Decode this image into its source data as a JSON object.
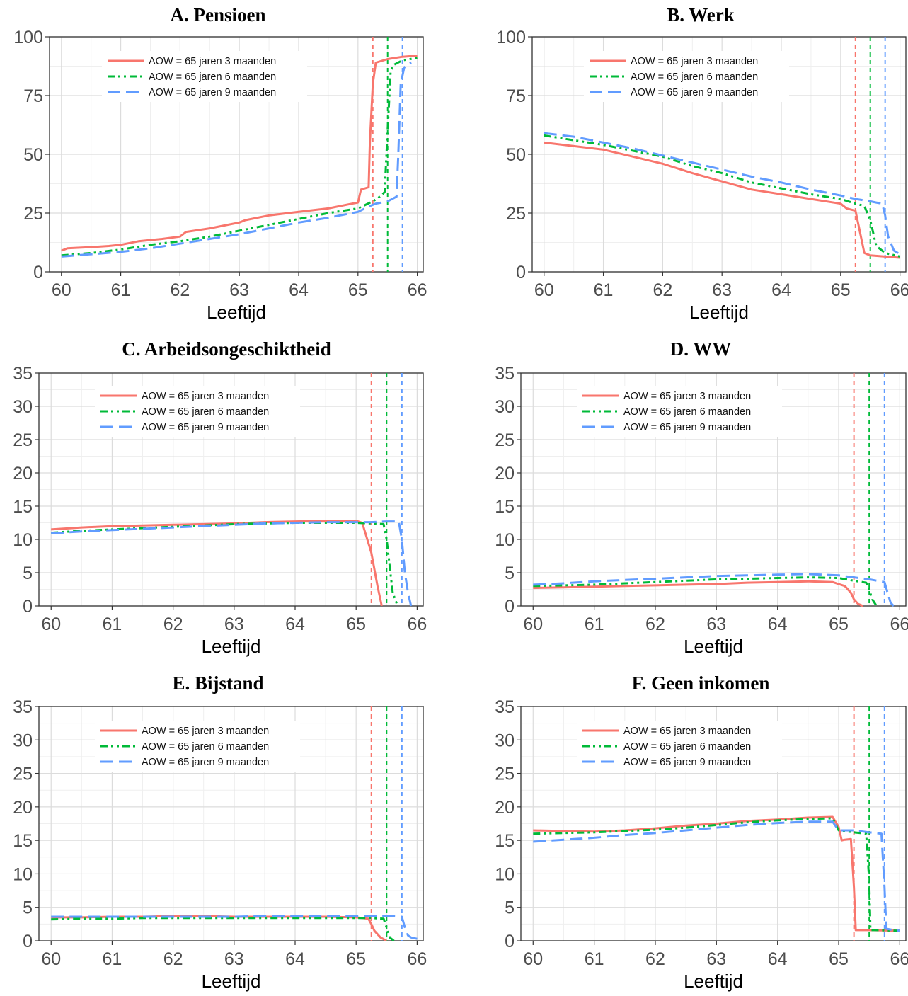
{
  "legend_labels": [
    "AOW = 65 jaren 3 maanden",
    "AOW = 65 jaren 6 maanden",
    "AOW = 65 jaren 9 maanden"
  ],
  "colors": {
    "s3": "#f8766d",
    "s6": "#00ba38",
    "s9": "#619cff",
    "grid_major": "#dcdcdc",
    "grid_minor": "#efefef",
    "axis": "#333333"
  },
  "chart_data": [
    {
      "type": "line",
      "title": "A.  Pensioen",
      "xlabel": "Leeftijd",
      "ylabel": "",
      "xlim": [
        59.8,
        66.1
      ],
      "ylim": [
        0,
        100
      ],
      "xticks": [
        60,
        61,
        62,
        63,
        64,
        65,
        66
      ],
      "yticks": [
        0,
        25,
        50,
        75,
        100
      ],
      "grid": true,
      "legend": "top-left",
      "vlines": [
        65.25,
        65.5,
        65.75
      ],
      "series": [
        {
          "name": "AOW = 65 jaren 3 maanden",
          "x": [
            60,
            60.1,
            60.5,
            60.8,
            61,
            61.3,
            61.7,
            62,
            62.1,
            62.5,
            62.8,
            63,
            63.1,
            63.5,
            64,
            64.5,
            64.9,
            65,
            65.05,
            65.18,
            65.2,
            65.25,
            65.3,
            65.5,
            65.75,
            66
          ],
          "y": [
            9,
            10,
            10.5,
            11,
            11.5,
            13,
            14,
            15,
            17,
            18.5,
            20,
            21,
            22,
            24,
            25.5,
            27,
            29,
            29.5,
            35,
            36,
            55,
            80,
            89,
            90.5,
            91.5,
            92
          ]
        },
        {
          "name": "AOW = 65 jaren 6 maanden",
          "x": [
            60,
            60.5,
            61,
            61.5,
            62,
            62.5,
            63,
            63.5,
            64,
            64.5,
            65,
            65.25,
            65.4,
            65.45,
            65.5,
            65.55,
            65.6,
            65.75,
            66
          ],
          "y": [
            7,
            8,
            9.5,
            11.5,
            13,
            15,
            17.5,
            20,
            22.5,
            25,
            27,
            30,
            32.5,
            34,
            60,
            85,
            88,
            90,
            91
          ]
        },
        {
          "name": "AOW = 65 jaren 9 maanden",
          "x": [
            60,
            60.5,
            61,
            61.5,
            62,
            62.5,
            63,
            63.5,
            64,
            64.5,
            65,
            65.2,
            65.3,
            65.5,
            65.65,
            65.68,
            65.72,
            65.78,
            65.85,
            65.9
          ],
          "y": [
            6.5,
            7.5,
            8.5,
            10,
            12,
            14,
            16,
            18.5,
            21,
            23,
            25.5,
            28,
            29,
            30,
            32,
            50,
            80,
            87,
            88.5,
            89
          ]
        }
      ]
    },
    {
      "type": "line",
      "title": "B.  Werk",
      "xlabel": "Leeftijd",
      "ylabel": "",
      "xlim": [
        59.8,
        66.1
      ],
      "ylim": [
        0,
        100
      ],
      "xticks": [
        60,
        61,
        62,
        63,
        64,
        65,
        66
      ],
      "yticks": [
        0,
        25,
        50,
        75,
        100
      ],
      "grid": true,
      "legend": "top-center",
      "vlines": [
        65.25,
        65.5,
        65.75
      ],
      "series": [
        {
          "name": "AOW = 65 jaren 3 maanden",
          "x": [
            60,
            60.5,
            61,
            61.5,
            62,
            62.5,
            63,
            63.5,
            64,
            64.5,
            65,
            65.1,
            65.25,
            65.4,
            65.5,
            66
          ],
          "y": [
            55,
            53.5,
            52,
            49,
            46,
            42,
            38.5,
            35,
            33,
            31,
            29,
            27,
            26,
            8,
            7,
            6
          ]
        },
        {
          "name": "AOW = 65 jaren 6 maanden",
          "x": [
            60,
            60.5,
            61,
            61.5,
            62,
            62.5,
            63,
            63.5,
            64,
            64.5,
            65,
            65.25,
            65.4,
            65.5,
            65.6,
            65.75,
            66
          ],
          "y": [
            58,
            56,
            54,
            51.5,
            49,
            45,
            42,
            38,
            35.5,
            33,
            31,
            29,
            28,
            22,
            11,
            8,
            6.5
          ]
        },
        {
          "name": "AOW = 65 jaren 9 maanden",
          "x": [
            60,
            60.5,
            61,
            61.5,
            62,
            62.5,
            63,
            63.5,
            64,
            64.5,
            65,
            65.25,
            65.5,
            65.6,
            65.7,
            65.75,
            65.8,
            65.9,
            66
          ],
          "y": [
            59,
            57.5,
            55,
            52.5,
            49.5,
            46.5,
            43.5,
            40.5,
            38,
            35,
            32.5,
            31,
            30,
            29.5,
            29,
            24,
            15,
            9,
            7.5
          ]
        }
      ]
    },
    {
      "type": "line",
      "title": "C.  Arbeidsongeschiktheid",
      "xlabel": "Leeftijd",
      "ylabel": "",
      "xlim": [
        59.8,
        66.1
      ],
      "ylim": [
        0,
        35
      ],
      "xticks": [
        60,
        61,
        62,
        63,
        64,
        65,
        66
      ],
      "yticks": [
        0,
        5,
        10,
        15,
        20,
        25,
        30,
        35
      ],
      "grid": true,
      "legend": "top-center",
      "vlines": [
        65.25,
        65.5,
        65.75
      ],
      "series": [
        {
          "name": "AOW = 65 jaren 3 maanden",
          "x": [
            60,
            60.5,
            61,
            61.5,
            62,
            62.5,
            63,
            63.5,
            64,
            64.5,
            65,
            65.1,
            65.25,
            65.35,
            65.42
          ],
          "y": [
            11.5,
            11.8,
            12,
            12.1,
            12.2,
            12.3,
            12.4,
            12.6,
            12.7,
            12.8,
            12.8,
            12.5,
            8,
            3,
            0
          ]
        },
        {
          "name": "AOW = 65 jaren 6 maanden",
          "x": [
            60,
            60.5,
            61,
            61.5,
            62,
            62.5,
            63,
            63.5,
            64,
            64.5,
            65,
            65.25,
            65.45,
            65.5,
            65.55,
            65.6,
            65.68
          ],
          "y": [
            11,
            11.3,
            11.5,
            11.7,
            11.9,
            12.1,
            12.3,
            12.4,
            12.5,
            12.5,
            12.5,
            12.4,
            12.3,
            10,
            6,
            2,
            0
          ]
        },
        {
          "name": "AOW = 65 jaren 9 maanden",
          "x": [
            60,
            60.5,
            61,
            61.5,
            62,
            62.5,
            63,
            63.5,
            64,
            64.5,
            65,
            65.25,
            65.5,
            65.7,
            65.75,
            65.8,
            65.85,
            65.9
          ],
          "y": [
            10.9,
            11.2,
            11.4,
            11.6,
            11.8,
            12,
            12.2,
            12.4,
            12.5,
            12.6,
            12.6,
            12.6,
            12.7,
            12.7,
            10,
            5,
            2,
            0
          ]
        }
      ]
    },
    {
      "type": "line",
      "title": "D.  WW",
      "xlabel": "Leeftijd",
      "ylabel": "",
      "xlim": [
        59.8,
        66.1
      ],
      "ylim": [
        0,
        35
      ],
      "xticks": [
        60,
        61,
        62,
        63,
        64,
        65,
        66
      ],
      "yticks": [
        0,
        5,
        10,
        15,
        20,
        25,
        30,
        35
      ],
      "grid": true,
      "legend": "top-center",
      "vlines": [
        65.25,
        65.5,
        65.75
      ],
      "series": [
        {
          "name": "AOW = 65 jaren 3 maanden",
          "x": [
            60,
            60.5,
            61,
            61.5,
            62,
            62.5,
            63,
            63.5,
            64,
            64.5,
            64.9,
            65,
            65.1,
            65.2,
            65.25,
            65.32,
            65.4
          ],
          "y": [
            2.7,
            2.8,
            2.9,
            3,
            3.1,
            3.2,
            3.3,
            3.5,
            3.6,
            3.7,
            3.6,
            3.3,
            3,
            2,
            1,
            0.3,
            0
          ]
        },
        {
          "name": "AOW = 65 jaren 6 maanden",
          "x": [
            60,
            60.5,
            61,
            61.5,
            62,
            62.5,
            63,
            63.5,
            64,
            64.5,
            65,
            65.25,
            65.45,
            65.5,
            65.55,
            65.62
          ],
          "y": [
            3,
            3.1,
            3.2,
            3.4,
            3.6,
            3.8,
            4,
            4.1,
            4.2,
            4.3,
            4.2,
            3.8,
            3.5,
            2.5,
            1,
            0
          ]
        },
        {
          "name": "AOW = 65 jaren 9 maanden",
          "x": [
            60,
            60.5,
            61,
            61.5,
            62,
            62.5,
            63,
            63.5,
            64,
            64.5,
            65,
            65.25,
            65.5,
            65.75,
            65.8,
            65.85,
            65.9
          ],
          "y": [
            3.2,
            3.4,
            3.7,
            3.9,
            4.1,
            4.3,
            4.5,
            4.6,
            4.7,
            4.8,
            4.6,
            4.3,
            4,
            3.6,
            2,
            0.5,
            0
          ]
        }
      ]
    },
    {
      "type": "line",
      "title": "E.  Bijstand",
      "xlabel": "Leeftijd",
      "ylabel": "",
      "xlim": [
        59.8,
        66.1
      ],
      "ylim": [
        0,
        35
      ],
      "xticks": [
        60,
        61,
        62,
        63,
        64,
        65,
        66
      ],
      "yticks": [
        0,
        5,
        10,
        15,
        20,
        25,
        30,
        35
      ],
      "grid": true,
      "legend": "top-center",
      "vlines": [
        65.25,
        65.5,
        65.75
      ],
      "series": [
        {
          "name": "AOW = 65 jaren 3 maanden",
          "x": [
            60,
            60.5,
            61,
            61.5,
            62,
            62.5,
            63,
            63.5,
            64,
            64.5,
            65,
            65.2,
            65.25,
            65.3,
            65.4,
            65.5
          ],
          "y": [
            3.5,
            3.5,
            3.6,
            3.6,
            3.7,
            3.7,
            3.6,
            3.6,
            3.6,
            3.6,
            3.5,
            3.3,
            2.5,
            1.5,
            0.5,
            0
          ]
        },
        {
          "name": "AOW = 65 jaren 6 maanden",
          "x": [
            60,
            60.5,
            61,
            61.5,
            62,
            62.5,
            63,
            63.5,
            64,
            64.5,
            65,
            65.25,
            65.45,
            65.5,
            65.55,
            65.62
          ],
          "y": [
            3.2,
            3.3,
            3.3,
            3.4,
            3.4,
            3.4,
            3.4,
            3.4,
            3.4,
            3.4,
            3.4,
            3.4,
            3.3,
            2,
            0.5,
            0
          ]
        },
        {
          "name": "AOW = 65 jaren 9 maanden",
          "x": [
            60,
            60.5,
            61,
            61.5,
            62,
            62.5,
            63,
            63.5,
            64,
            64.5,
            65,
            65.25,
            65.5,
            65.75,
            65.8,
            65.85,
            65.9,
            66
          ],
          "y": [
            3.6,
            3.6,
            3.6,
            3.6,
            3.6,
            3.6,
            3.6,
            3.7,
            3.7,
            3.7,
            3.7,
            3.7,
            3.7,
            3.6,
            2,
            0.8,
            0.5,
            0.3
          ]
        }
      ]
    },
    {
      "type": "line",
      "title": "F.  Geen inkomen",
      "xlabel": "Leeftijd",
      "ylabel": "",
      "xlim": [
        59.8,
        66.1
      ],
      "ylim": [
        0,
        35
      ],
      "xticks": [
        60,
        61,
        62,
        63,
        64,
        65,
        66
      ],
      "yticks": [
        0,
        5,
        10,
        15,
        20,
        25,
        30,
        35
      ],
      "grid": true,
      "legend": "top-center",
      "vlines": [
        65.25,
        65.5,
        65.75
      ],
      "series": [
        {
          "name": "AOW = 65 jaren 3 maanden",
          "x": [
            60,
            60.5,
            61,
            61.5,
            62,
            62.5,
            63,
            63.5,
            64,
            64.5,
            64.9,
            65,
            65.05,
            65.1,
            65.2,
            65.25,
            65.28,
            65.5,
            66
          ],
          "y": [
            16.5,
            16.4,
            16.3,
            16.5,
            16.8,
            17.2,
            17.5,
            17.9,
            18.1,
            18.4,
            18.5,
            17,
            15,
            15.1,
            15.2,
            8,
            1.6,
            1.6,
            1.5
          ]
        },
        {
          "name": "AOW = 65 jaren 6 maanden",
          "x": [
            60,
            60.5,
            61,
            61.5,
            62,
            62.5,
            63,
            63.5,
            64,
            64.5,
            64.9,
            65,
            65.25,
            65.45,
            65.5,
            65.52,
            65.6,
            66
          ],
          "y": [
            16,
            16.1,
            16.2,
            16.4,
            16.6,
            16.9,
            17.3,
            17.7,
            18,
            18.2,
            18.3,
            16.5,
            16.2,
            16,
            9,
            1.6,
            1.6,
            1.5
          ]
        },
        {
          "name": "AOW = 65 jaren 9 maanden",
          "x": [
            60,
            60.5,
            61,
            61.5,
            62,
            62.5,
            63,
            63.5,
            64,
            64.5,
            64.9,
            65,
            65.25,
            65.5,
            65.7,
            65.75,
            65.78,
            65.9,
            66
          ],
          "y": [
            14.8,
            15.1,
            15.4,
            15.8,
            16.1,
            16.5,
            16.9,
            17.3,
            17.6,
            17.8,
            17.8,
            16.5,
            16.5,
            16.2,
            16,
            8,
            1.8,
            1.6,
            1.5
          ]
        }
      ]
    }
  ]
}
